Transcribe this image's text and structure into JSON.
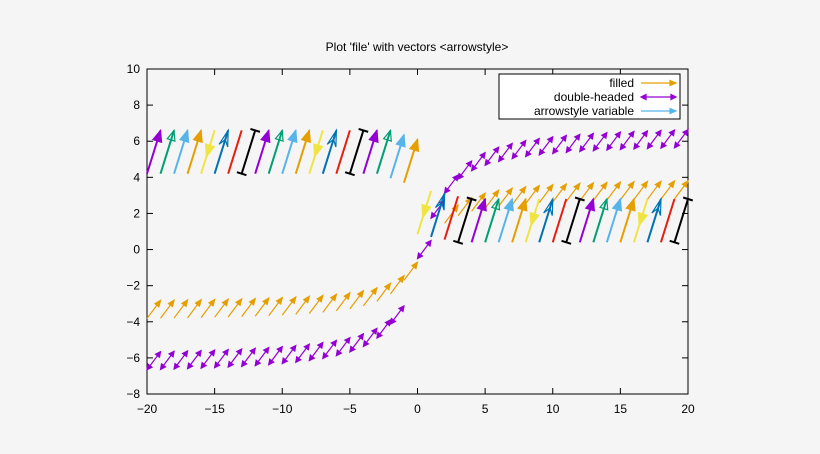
{
  "chart_data": {
    "type": "vector",
    "title": "Plot 'file' with vectors <arrowstyle>",
    "xlabel": "",
    "ylabel": "",
    "xlim": [
      -20,
      20
    ],
    "ylim": [
      -8,
      10
    ],
    "xticks": [
      -20,
      -15,
      -10,
      -5,
      0,
      5,
      10,
      15,
      20
    ],
    "yticks": [
      -8,
      -6,
      -4,
      -2,
      0,
      2,
      4,
      6,
      8,
      10
    ],
    "grid": false,
    "legend_position": "top-right",
    "series": [
      {
        "name": "filled",
        "color": "#e69f00",
        "style": "filled",
        "formula": "y = atan(x) * 0.9 * 3.5 / (pi/2), arrow dx=1, dy=1"
      },
      {
        "name": "double-headed",
        "color": "#9400d3",
        "style": "double-headed",
        "formula": "y = atan(x) * 6.5 / (pi/2), arrow dx=1, dy=1"
      },
      {
        "name": "arrowstyle variable",
        "color": "#56b4e9",
        "style": "variable",
        "cycle_colors": [
          "#9400d3",
          "#009e73",
          "#56b4e9",
          "#e69f00",
          "#f0e442",
          "#0072b2",
          "#e51e10",
          "#000000"
        ]
      }
    ]
  }
}
